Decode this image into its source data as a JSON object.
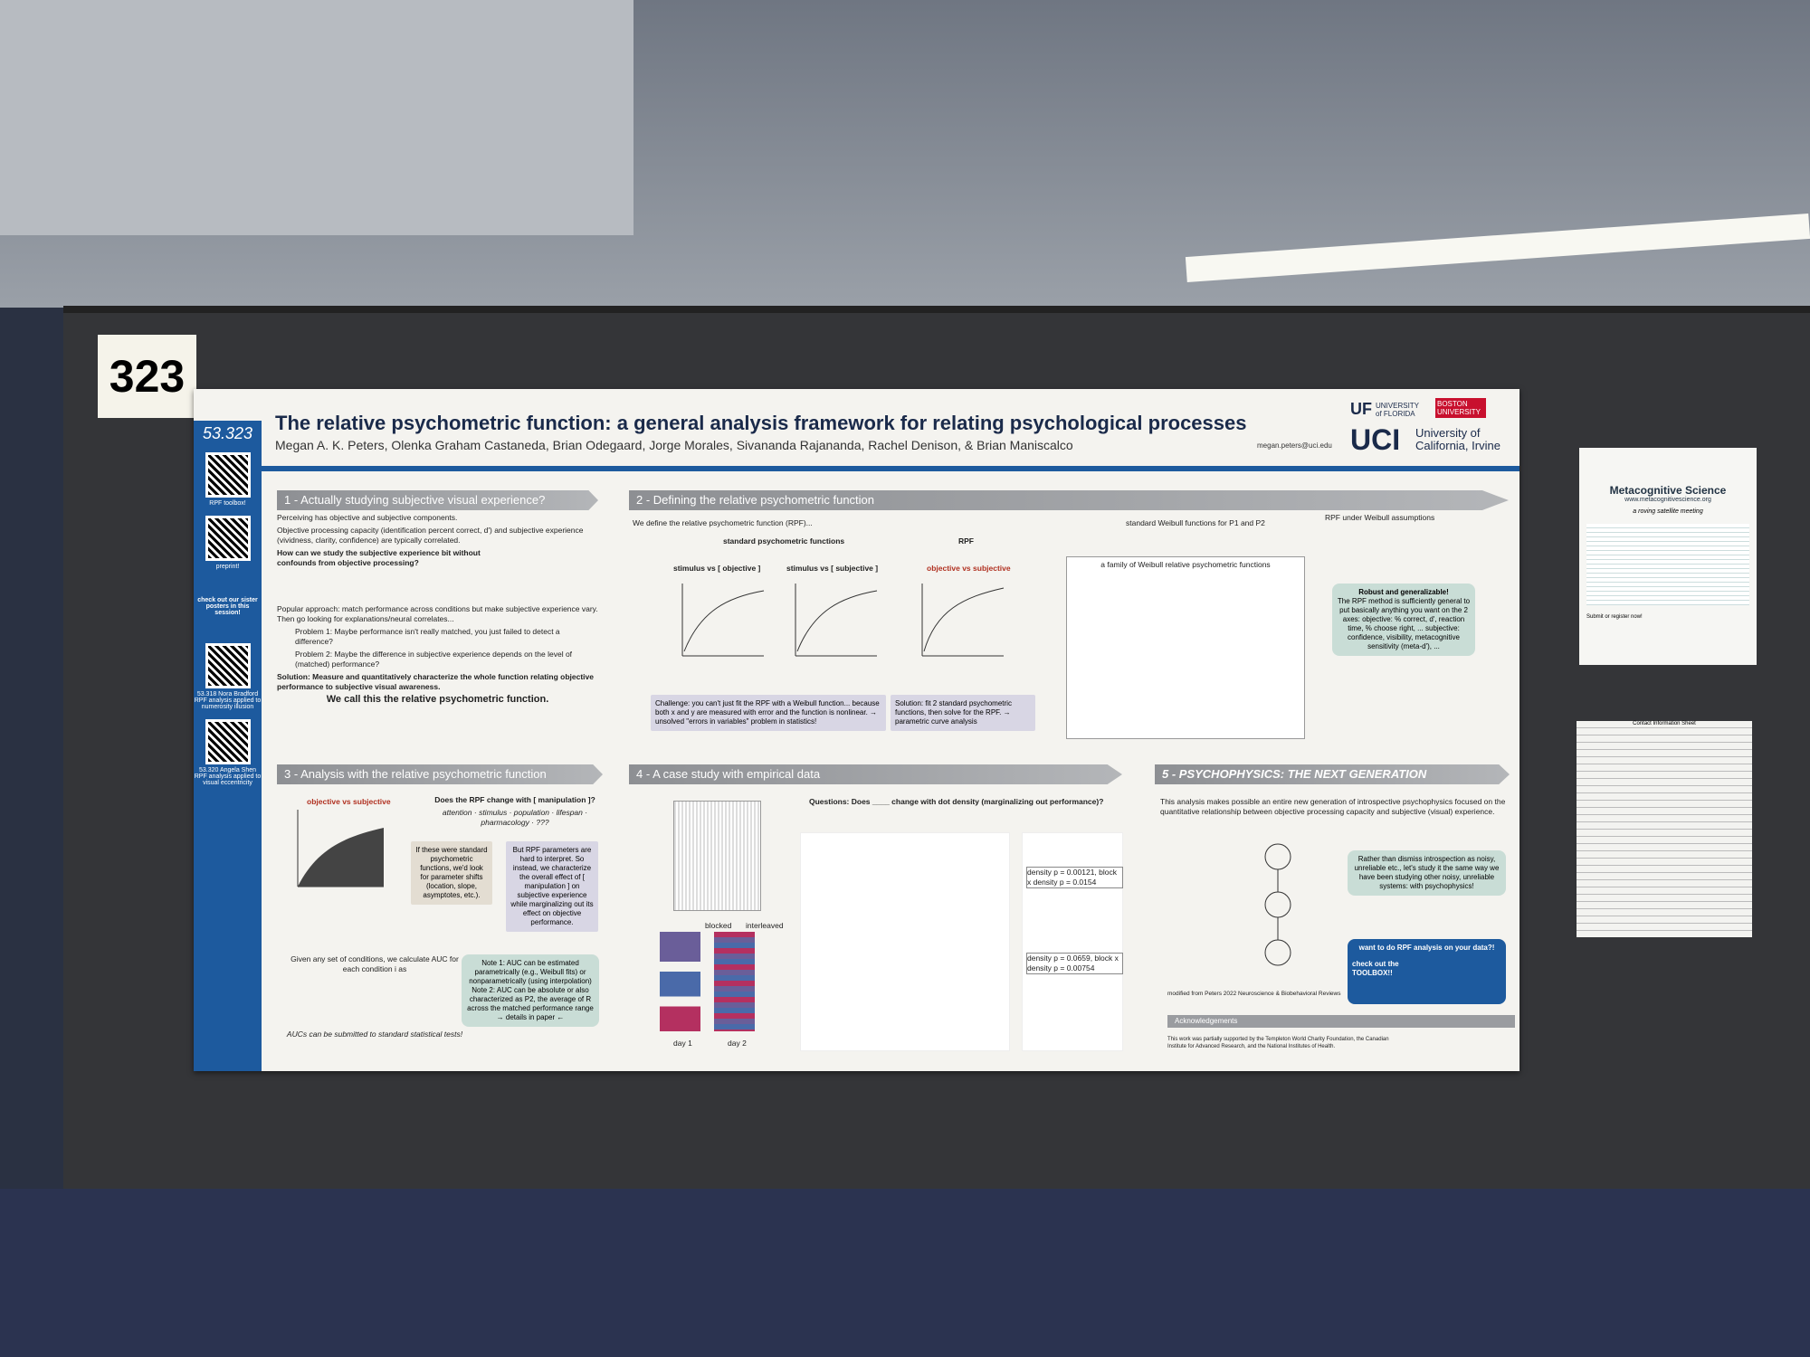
{
  "sign_number": "323",
  "poster": {
    "id": "53.323",
    "title": "The relative psychometric function: a general analysis framework for relating psychological processes",
    "authors": "Megan A. K. Peters, Olenka Graham Castaneda, Brian Odegaard, Jorge Morales, Sivananda Rajananda, Rachel Denison, & Brian Maniscalco",
    "email": "megan.peters@uci.edu",
    "logos": [
      "UF",
      "UNIVERSITY of FLORIDA",
      "BOSTON UNIVERSITY",
      "UCI",
      "University of California, Irvine"
    ],
    "sidebar": [
      "RPF toolbox!",
      "preprint!",
      "check out our sister posters in this session!",
      "53.318 Nora Bradford RPF analysis applied to numerosity illusion",
      "53.320 Angela Shen RPF analysis applied to visual eccentricity"
    ],
    "sections": [
      {
        "heading": "1 - Actually studying subjective visual experience?",
        "paragraphs": [
          "Perceiving has objective and subjective components.",
          "Objective processing capacity (identification percent correct, d') and subjective experience (vividness, clarity, confidence) are typically correlated.",
          "How can we study the subjective experience bit without confounds from objective processing?",
          "Popular approach: match performance across conditions but make subjective experience vary. Then go looking for explanations/neural correlates...",
          "Problem 1: Maybe performance isn't really matched, you just failed to detect a difference?",
          "Problem 2: Maybe the difference in subjective experience depends on the level of (matched) performance?",
          "Solution: Measure and quantitatively characterize the whole function relating objective performance to subjective visual awareness.",
          "We call this the relative psychometric function."
        ]
      },
      {
        "heading": "2 - Defining the relative psychometric function",
        "paragraphs": [
          "We define the relative psychometric function (RPF)...",
          "standard psychometric functions",
          "RPF",
          "stimulus vs [ objective ]",
          "stimulus vs [ subjective ]",
          "objective vs subjective",
          "Challenge: you can't just fit the RPF with a Weibull function... because both x and y are measured with error and the function is nonlinear. → unsolved \"errors in variables\" problem in statistics!",
          "Solution: fit 2 standard psychometric functions, then solve for the RPF. → parametric curve analysis",
          "standard Weibull functions for P1 and P2",
          "RPF under Weibull assumptions",
          "a family of Weibull relative psychometric functions",
          "Robust and generalizable!",
          "The RPF method is sufficiently general to put basically anything you want on the 2 axes: objective: % correct, d', reaction time, % choose right, ... subjective: confidence, visibility, metacognitive sensitivity (meta-d'), ..."
        ]
      },
      {
        "heading": "3 - Analysis with the relative psychometric function",
        "paragraphs": [
          "objective vs subjective",
          "Does the RPF change with [ manipulation ]?",
          "attention · stimulus · population · lifespan · pharmacology · ???",
          "If these were standard psychometric functions, we'd look for parameter shifts (location, slope, asymptotes, etc.).",
          "But RPF parameters are hard to interpret. So instead, we characterize the overall effect of [ manipulation ] on subjective experience while marginalizing out its effect on objective performance.",
          "Given any set of conditions, we calculate AUC for each condition i as",
          "AUCs can be submitted to standard statistical tests!",
          "Note 1: AUC can be estimated parametrically (e.g., Weibull fits) or nonparametrically (using interpolation)",
          "Note 2: AUC can be absolute or also characterized as P2, the average of R across the matched performance range",
          "→ details in paper ←"
        ]
      },
      {
        "heading": "4 - A case study with empirical data",
        "paragraphs": [
          "Questions: Does ____ change with dot density (marginalizing out performance)?",
          "blocked",
          "interleaved",
          "density p = 0.00121, block x density p = 0.0154",
          "density p = 0.0659, block x density p = 0.00754",
          "day 1",
          "day 2"
        ]
      },
      {
        "heading": "5 - PSYCHOPHYSICS: THE NEXT GENERATION",
        "paragraphs": [
          "This analysis makes possible an entire new generation of introspective psychophysics focused on the quantitative relationship between objective processing capacity and subjective (visual) experience.",
          "Rather than dismiss introspection as noisy, unreliable etc., let's study it the same way we have been studying other noisy, unreliable systems: with psychophysics!",
          "want to do RPF analysis on your data?!",
          "check out the TOOLBOX!!",
          "modified from Peters 2022 Neuroscience & Biobehavioral Reviews",
          "Acknowledgements",
          "This work was partially supported by the Templeton World Charity Foundation, the Canadian Institute for Advanced Research, and the National Institutes of Health."
        ]
      }
    ]
  },
  "flyer": {
    "title": "Metacognitive Science",
    "url": "www.metacognitivescience.org",
    "subtitle": "a roving satellite meeting",
    "footer": "Submit or register now!"
  },
  "sheet": {
    "title": "Contact Information Sheet"
  }
}
